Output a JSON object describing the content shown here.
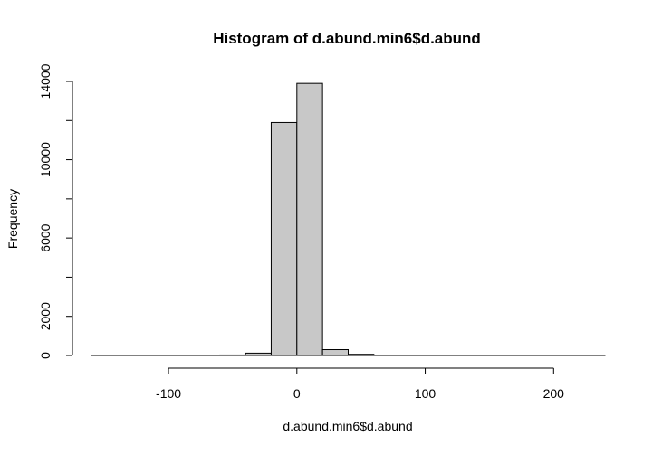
{
  "chart_data": {
    "type": "bar",
    "title": "Histogram of d.abund.min6$d.abund",
    "xlabel": "d.abund.min6$d.abund",
    "ylabel": "Frequency",
    "xlim": [
      -160,
      240
    ],
    "ylim": [
      0,
      14000
    ],
    "x_ticks": [
      -100,
      0,
      100,
      200
    ],
    "x_tick_labels": [
      "-100",
      "0",
      "100",
      "200"
    ],
    "y_ticks": [
      0,
      2000,
      4000,
      6000,
      8000,
      10000,
      12000,
      14000
    ],
    "y_tick_labels": [
      "0",
      "2000",
      "",
      "6000",
      "",
      "10000",
      "",
      "14000"
    ],
    "bin_edges": [
      -160,
      -140,
      -120,
      -100,
      -80,
      -60,
      -40,
      -20,
      0,
      20,
      40,
      60,
      80,
      100,
      120,
      140,
      160,
      180,
      200,
      220,
      240
    ],
    "values": [
      2,
      3,
      5,
      8,
      12,
      25,
      120,
      11900,
      13900,
      300,
      60,
      20,
      12,
      8,
      5,
      4,
      3,
      2,
      2,
      1
    ],
    "bar_color": "#c8c8c8",
    "edge_color": "#000000",
    "grid": false
  }
}
